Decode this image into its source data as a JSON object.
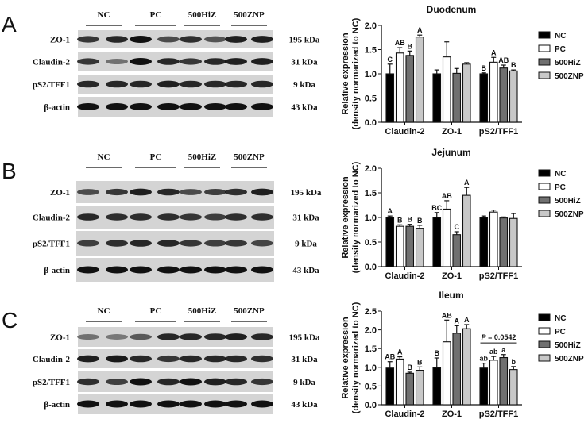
{
  "panels": [
    {
      "letter": "A",
      "groups": [
        "NC",
        "PC",
        "500HiZ",
        "500ZNP"
      ],
      "blot_rows": [
        {
          "protein": "ZO-1",
          "size": "195 kDa",
          "band_intensity": [
            0.75,
            0.85,
            1.0,
            0.6,
            0.8,
            0.55,
            0.9,
            0.9
          ]
        },
        {
          "protein": "Claudin-2",
          "size": "31 kDa",
          "band_intensity": [
            0.75,
            0.35,
            1.0,
            0.85,
            0.75,
            0.85,
            0.9,
            0.9
          ]
        },
        {
          "protein": "pS2/TFF1",
          "size": "9 kDa",
          "band_intensity": [
            0.85,
            0.85,
            0.85,
            0.9,
            0.85,
            0.85,
            0.85,
            0.85
          ]
        },
        {
          "protein": "β-actin",
          "size": "43 kDa",
          "band_intensity": [
            1,
            1,
            1,
            1,
            1,
            1,
            1,
            1
          ]
        }
      ]
    },
    {
      "letter": "B",
      "groups": [
        "NC",
        "PC",
        "500HiZ",
        "500ZNP"
      ],
      "blot_rows": [
        {
          "protein": "ZO-1",
          "size": "195 kDa",
          "band_intensity": [
            0.6,
            0.75,
            0.9,
            0.85,
            0.6,
            0.7,
            0.8,
            0.9
          ]
        },
        {
          "protein": "Claudin-2",
          "size": "31 kDa",
          "band_intensity": [
            0.85,
            0.8,
            0.8,
            0.8,
            0.75,
            0.7,
            0.8,
            0.8
          ]
        },
        {
          "protein": "pS2/TFF1",
          "size": "9 kDa",
          "band_intensity": [
            0.7,
            0.8,
            0.85,
            0.85,
            0.75,
            0.7,
            0.75,
            0.65
          ]
        },
        {
          "protein": "β-actin",
          "size": "43 kDa",
          "band_intensity": [
            1,
            1,
            1,
            1,
            1,
            1,
            1,
            1
          ]
        }
      ]
    },
    {
      "letter": "C",
      "groups": [
        "NC",
        "PC",
        "500HiZ",
        "500ZNP"
      ],
      "blot_rows": [
        {
          "protein": "ZO-1",
          "size": "195 kDa",
          "band_intensity": [
            0.35,
            0.3,
            0.5,
            0.85,
            0.85,
            0.85,
            0.9,
            0.85
          ]
        },
        {
          "protein": "Claudin-2",
          "size": "31 kDa",
          "band_intensity": [
            0.9,
            0.95,
            0.85,
            0.75,
            0.85,
            0.85,
            0.85,
            0.8
          ]
        },
        {
          "protein": "pS2/TFF1",
          "size": "9 kDa",
          "band_intensity": [
            0.8,
            0.7,
            1.0,
            0.85,
            1.0,
            0.9,
            0.85,
            0.75
          ]
        },
        {
          "protein": "β-actin",
          "size": "43 kDa",
          "band_intensity": [
            1,
            1,
            1,
            1,
            1,
            1,
            1,
            1
          ]
        }
      ]
    }
  ],
  "chart_data": [
    {
      "type": "bar",
      "title": "Duodenum",
      "ylabel": "Relative expression\n(density normarized to NC)",
      "categories": [
        "Claudin-2",
        "ZO-1",
        "pS2/TFF1"
      ],
      "ylim": [
        0,
        2.0
      ],
      "yticks": [
        "0.0",
        "0.5",
        "1.0",
        "1.5",
        "2.0"
      ],
      "legend_position": "right",
      "series": [
        {
          "name": "NC",
          "color": "#000000",
          "values": [
            1.0,
            1.0,
            1.0
          ],
          "errors": [
            0.2,
            0.08,
            0.02
          ],
          "letters": [
            "C",
            "",
            "B"
          ]
        },
        {
          "name": "PC",
          "color": "#ffffff",
          "values": [
            1.43,
            1.35,
            1.24
          ],
          "errors": [
            0.11,
            0.31,
            0.1
          ],
          "letters": [
            "AB",
            "",
            "A"
          ]
        },
        {
          "name": "500HiZ",
          "color": "#707070",
          "values": [
            1.38,
            1.01,
            1.12
          ],
          "errors": [
            0.09,
            0.1,
            0.06
          ],
          "letters": [
            "B",
            "",
            "AB"
          ]
        },
        {
          "name": "500ZNP",
          "color": "#c8c8c8",
          "values": [
            1.76,
            1.2,
            1.06
          ],
          "errors": [
            0.04,
            0.03,
            0.02
          ],
          "letters": [
            "A",
            "",
            "B"
          ]
        }
      ]
    },
    {
      "type": "bar",
      "title": "Jejunum",
      "ylabel": "Relative expression\n(density normarized to NC)",
      "categories": [
        "Claudin-2",
        "ZO-1",
        "pS2/TFF1"
      ],
      "ylim": [
        0,
        2.0
      ],
      "yticks": [
        "0.0",
        "0.5",
        "1.0",
        "1.5",
        "2.0"
      ],
      "legend_position": "right",
      "series": [
        {
          "name": "NC",
          "color": "#000000",
          "values": [
            1.0,
            1.0,
            1.0
          ],
          "errors": [
            0.03,
            0.1,
            0.03
          ],
          "letters": [
            "A",
            "BC",
            ""
          ]
        },
        {
          "name": "PC",
          "color": "#ffffff",
          "values": [
            0.82,
            1.17,
            1.11
          ],
          "errors": [
            0.03,
            0.17,
            0.04
          ],
          "letters": [
            "B",
            "AB",
            ""
          ]
        },
        {
          "name": "500HiZ",
          "color": "#707070",
          "values": [
            0.82,
            0.65,
            0.99
          ],
          "errors": [
            0.04,
            0.06,
            0.02
          ],
          "letters": [
            "B",
            "C",
            ""
          ]
        },
        {
          "name": "500ZNP",
          "color": "#c8c8c8",
          "values": [
            0.78,
            1.45,
            0.98
          ],
          "errors": [
            0.06,
            0.16,
            0.1
          ],
          "letters": [
            "B",
            "A",
            ""
          ]
        }
      ]
    },
    {
      "type": "bar",
      "title": "Ileum",
      "ylabel": "Relative expression\n(density normarized to NC)",
      "categories": [
        "Claudin-2",
        "ZO-1",
        "pS2/TFF1"
      ],
      "ylim": [
        0,
        2.5
      ],
      "yticks": [
        "0.0",
        "0.5",
        "1.0",
        "1.5",
        "2.0",
        "2.5"
      ],
      "legend_position": "right",
      "annotation": {
        "category": "pS2/TFF1",
        "p_label": "P",
        "p_value": "= 0.0542"
      },
      "series": [
        {
          "name": "NC",
          "color": "#000000",
          "values": [
            0.98,
            0.99,
            0.98
          ],
          "errors": [
            0.17,
            0.26,
            0.13
          ],
          "letters": [
            "AB",
            "B",
            "ab"
          ]
        },
        {
          "name": "PC",
          "color": "#ffffff",
          "values": [
            1.22,
            1.68,
            1.19
          ],
          "errors": [
            0.06,
            0.58,
            0.1
          ],
          "letters": [
            "A",
            "AB",
            "ab"
          ]
        },
        {
          "name": "500HiZ",
          "color": "#707070",
          "values": [
            0.84,
            1.91,
            1.26
          ],
          "errors": [
            0.03,
            0.2,
            0.08
          ],
          "letters": [
            "B",
            "A",
            "a"
          ]
        },
        {
          "name": "500ZNP",
          "color": "#c8c8c8",
          "values": [
            0.92,
            2.03,
            0.94
          ],
          "errors": [
            0.09,
            0.11,
            0.08
          ],
          "letters": [
            "B",
            "A",
            "b"
          ]
        }
      ]
    }
  ]
}
